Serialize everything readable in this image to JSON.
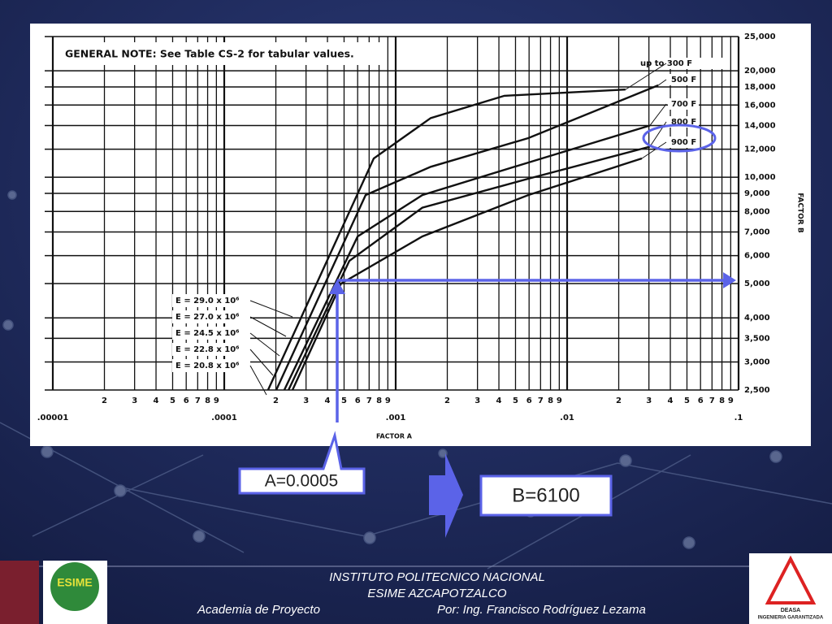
{
  "chart_data": {
    "type": "line",
    "note": "GENERAL NOTE: See Table CS-2 for tabular values.",
    "x_label": "FACTOR A",
    "y_label": "FACTOR B",
    "x_log": true,
    "y_log": true,
    "grid": true,
    "xlim": [
      1e-05,
      0.1
    ],
    "ylim": [
      2500,
      25000
    ],
    "xticks": [
      {
        "value": 1e-05,
        "label": ".00001"
      },
      {
        "value": 2e-05,
        "label": "2"
      },
      {
        "value": 3e-05,
        "label": "3"
      },
      {
        "value": 4e-05,
        "label": "4"
      },
      {
        "value": 5e-05,
        "label": "5"
      },
      {
        "value": 6e-05,
        "label": "6"
      },
      {
        "value": 7e-05,
        "label": "7"
      },
      {
        "value": 8e-05,
        "label": "8"
      },
      {
        "value": 9e-05,
        "label": "9"
      },
      {
        "value": 0.0001,
        "label": ".0001"
      },
      {
        "value": 0.0002,
        "label": "2"
      },
      {
        "value": 0.0003,
        "label": "3"
      },
      {
        "value": 0.0004,
        "label": "4"
      },
      {
        "value": 0.0005,
        "label": "5"
      },
      {
        "value": 0.0006,
        "label": "6"
      },
      {
        "value": 0.0007,
        "label": "7"
      },
      {
        "value": 0.0008,
        "label": "8"
      },
      {
        "value": 0.0009,
        "label": "9"
      },
      {
        "value": 0.001,
        "label": ".001"
      },
      {
        "value": 0.002,
        "label": "2"
      },
      {
        "value": 0.003,
        "label": "3"
      },
      {
        "value": 0.004,
        "label": "4"
      },
      {
        "value": 0.005,
        "label": "5"
      },
      {
        "value": 0.006,
        "label": "6"
      },
      {
        "value": 0.007,
        "label": "7"
      },
      {
        "value": 0.008,
        "label": "8"
      },
      {
        "value": 0.009,
        "label": "9"
      },
      {
        "value": 0.01,
        "label": ".01"
      },
      {
        "value": 0.02,
        "label": "2"
      },
      {
        "value": 0.03,
        "label": "3"
      },
      {
        "value": 0.04,
        "label": "4"
      },
      {
        "value": 0.05,
        "label": "5"
      },
      {
        "value": 0.06,
        "label": "6"
      },
      {
        "value": 0.07,
        "label": "7"
      },
      {
        "value": 0.08,
        "label": "8"
      },
      {
        "value": 0.09,
        "label": "9"
      },
      {
        "value": 0.1,
        "label": ".1"
      }
    ],
    "yticks": [
      {
        "value": 25000,
        "label": "25,000"
      },
      {
        "value": 20000,
        "label": "20,000"
      },
      {
        "value": 18000,
        "label": "18,000"
      },
      {
        "value": 16000,
        "label": "16,000"
      },
      {
        "value": 14000,
        "label": "14,000"
      },
      {
        "value": 12000,
        "label": "12,000"
      },
      {
        "value": 10000,
        "label": "10,000"
      },
      {
        "value": 9000,
        "label": "9,000"
      },
      {
        "value": 8000,
        "label": "8,000"
      },
      {
        "value": 7000,
        "label": "7,000"
      },
      {
        "value": 6000,
        "label": "6,000"
      },
      {
        "value": 5000,
        "label": "5,000"
      },
      {
        "value": 4000,
        "label": "4,000"
      },
      {
        "value": 3500,
        "label": "3,500"
      },
      {
        "value": 3000,
        "label": "3,000"
      },
      {
        "value": 2500,
        "label": "2,500"
      }
    ],
    "series": [
      {
        "name": "up to 300 F",
        "color": "#111111",
        "x": [
          0.00018,
          0.000745,
          0.0016,
          0.0043,
          0.0219
        ],
        "values": [
          2500,
          11300,
          14700,
          17000,
          17700
        ]
      },
      {
        "name": "500 F",
        "color": "#111111",
        "x": [
          0.000201,
          0.000668,
          0.0016,
          0.00593,
          0.034
        ],
        "values": [
          2500,
          8900,
          10700,
          12900,
          18200
        ]
      },
      {
        "name": "700 F",
        "color": "#111111",
        "x": [
          0.000224,
          0.0006,
          0.00143,
          0.00593,
          0.0304
        ],
        "values": [
          2500,
          6800,
          8900,
          11000,
          14000
        ]
      },
      {
        "name": "800 F",
        "color": "#111111",
        "x": [
          0.000237,
          0.000537,
          0.00143,
          0.00593,
          0.0304
        ],
        "values": [
          2500,
          5800,
          8200,
          9900,
          12200
        ]
      },
      {
        "name": "900 F",
        "color": "#111111",
        "x": [
          0.00025,
          0.00048,
          0.00143,
          0.00593,
          0.0273
        ],
        "values": [
          2500,
          5000,
          6800,
          8900,
          11300
        ]
      }
    ],
    "annotations": [
      "E = 29.0 x 10⁶",
      "E = 27.0 x 10⁶",
      "E = 24.5 x 10⁶",
      "E = 22.8 x 10⁶",
      "E = 20.8 x 10⁶"
    ]
  },
  "callouts": {
    "a_value": "A=0.0005",
    "b_value": "B=6100"
  },
  "footer": {
    "line1": "INSTITUTO POLITECNICO NACIONAL",
    "line2": "ESIME AZCAPOTZALCO",
    "left": "Academia de Proyecto",
    "right": "Por: Ing. Francisco Rodríguez Lezama"
  },
  "logos": {
    "left": "ESIME",
    "right_name": "DEASA",
    "right_tagline": "INGENIERIA GARANTIZADA"
  }
}
